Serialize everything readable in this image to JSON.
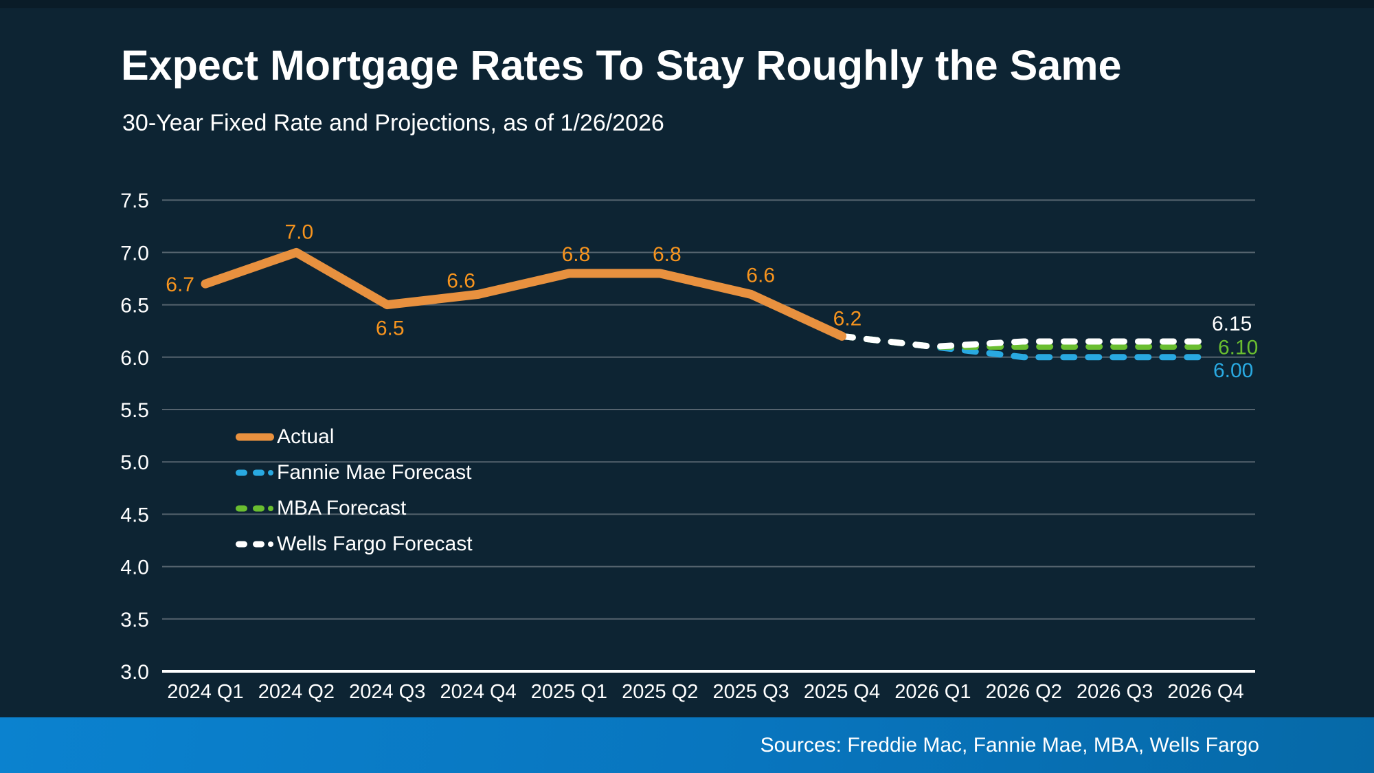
{
  "title": "Expect Mortgage Rates To Stay Roughly the Same",
  "subtitle": "30-Year Fixed Rate and Projections, as of 1/26/2026",
  "footer": {
    "sources": "Sources: Freddie Mac, Fannie Mae, MBA, Wells Fargo"
  },
  "colors": {
    "background": "#0D2433",
    "top_strip": "#0A1C28",
    "text": "#FFFFFF",
    "gridline": "#55636E",
    "axis_line": "#FFFFFF",
    "actual_line": "#E8913F",
    "actual_label": "#F7941E",
    "fannie_mae": "#29A9E1",
    "mba": "#6ABE30",
    "wells_fargo": "#FFFFFF",
    "footer_bar_start": "#0B82CF",
    "footer_bar_mid": "#0875BE",
    "footer_bar_end": "#0669A7"
  },
  "chart_data": {
    "type": "line",
    "title": "30-Year Fixed Rate and Projections, as of 1/26/2026",
    "xlabel": "",
    "ylabel": "",
    "categories": [
      "2024 Q1",
      "2024 Q2",
      "2024 Q3",
      "2024 Q4",
      "2025 Q1",
      "2025 Q2",
      "2025 Q3",
      "2025 Q4",
      "2026 Q1",
      "2026 Q2",
      "2026 Q3",
      "2026 Q4"
    ],
    "ylim": [
      3.0,
      7.5
    ],
    "ytick_step": 0.5,
    "yticks": [
      "7.5",
      "7.0",
      "6.5",
      "6.0",
      "5.5",
      "5.0",
      "4.5",
      "4.0",
      "3.5",
      "3.0"
    ],
    "grid": true,
    "legend_position": "inside-left",
    "legend": [
      "Actual",
      "Fannie Mae Forecast",
      "MBA Forecast",
      "Wells Fargo Forecast"
    ],
    "series": [
      {
        "name": "Actual",
        "style": "solid",
        "color": "#E8913F",
        "label_color": "#F7941E",
        "start_index": 0,
        "values": [
          6.7,
          7.0,
          6.5,
          6.6,
          6.8,
          6.8,
          6.6,
          6.2
        ],
        "point_labels": [
          "6.7",
          "7.0",
          "6.5",
          "6.6",
          "6.8",
          "6.8",
          "6.6",
          "6.2"
        ]
      },
      {
        "name": "Fannie Mae Forecast",
        "style": "dashed",
        "color": "#29A9E1",
        "start_index": 7,
        "values": [
          6.2,
          6.1,
          6.0,
          6.0,
          6.0
        ],
        "end_label": "6.00"
      },
      {
        "name": "MBA Forecast",
        "style": "dashed",
        "color": "#6ABE30",
        "start_index": 7,
        "values": [
          6.2,
          6.1,
          6.1,
          6.1,
          6.1
        ],
        "end_label": "6.10"
      },
      {
        "name": "Wells Fargo Forecast",
        "style": "dashed",
        "color": "#FFFFFF",
        "start_index": 7,
        "values": [
          6.2,
          6.1,
          6.15,
          6.15,
          6.15
        ],
        "end_label": "6.15"
      }
    ]
  }
}
